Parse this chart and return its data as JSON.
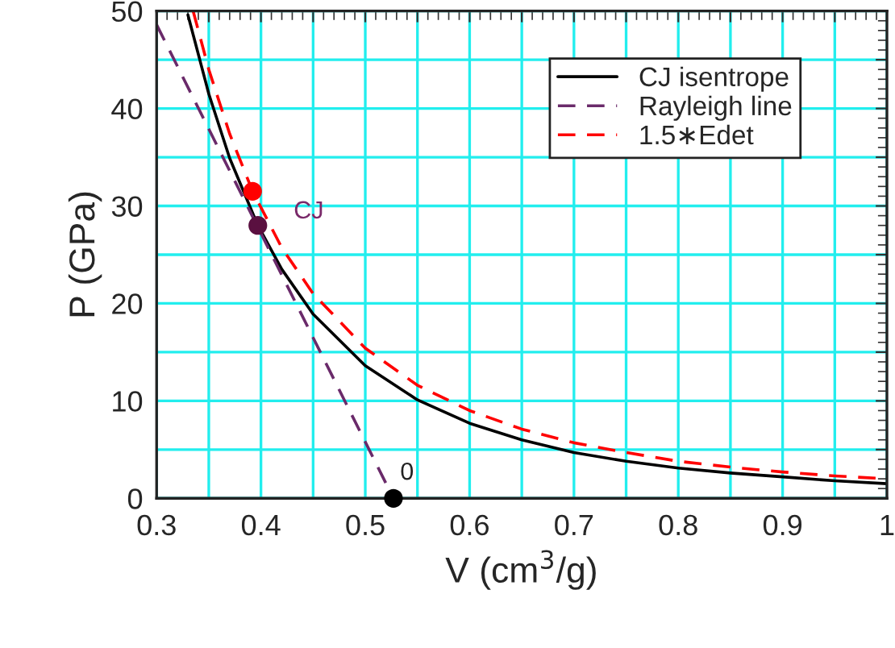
{
  "chart_data": {
    "type": "line",
    "xlabel": "V (cm$^{3}$/g)",
    "ylabel": "P (GPa)",
    "xlim": [
      0.3,
      1
    ],
    "ylim": [
      0,
      50
    ],
    "xticks": [
      0.3,
      {
        "value": 0.35,
        "label": null
      },
      0.4,
      {
        "value": 0.45,
        "label": null
      },
      0.5,
      {
        "value": 0.55,
        "label": null
      },
      0.6,
      {
        "value": 0.65,
        "label": null
      },
      0.7,
      {
        "value": 0.75,
        "label": null
      },
      0.8,
      {
        "value": 0.85,
        "label": null
      },
      0.9,
      {
        "value": 0.95,
        "label": null
      },
      1
    ],
    "yticks": [
      0,
      {
        "value": 5,
        "label": null
      },
      10,
      {
        "value": 15,
        "label": null
      },
      20,
      {
        "value": 25,
        "label": null
      },
      30,
      {
        "value": 35,
        "label": null
      },
      40,
      {
        "value": 45,
        "label": null
      },
      50
    ],
    "grid": true,
    "legend": "top right",
    "marker": "none",
    "series": [
      {
        "name": "CJ isentrope",
        "color": "#000000",
        "line_style": "solid",
        "x": [
          0.33,
          0.35,
          0.37,
          0.397,
          0.42,
          0.45,
          0.5,
          0.55,
          0.6,
          0.65,
          0.7,
          0.75,
          0.8,
          0.85,
          0.9,
          0.95,
          1.0
        ],
        "values": [
          49.6,
          41.5,
          34.9,
          28,
          23.5,
          18.9,
          13.6,
          10.1,
          7.7,
          6.0,
          4.7,
          3.8,
          3.1,
          2.6,
          2.2,
          1.8,
          1.5
        ]
      },
      {
        "name": "Rayleigh line",
        "color": "#6a2a6a",
        "line_style": "dashed",
        "x": [
          0.3,
          0.527
        ],
        "values": [
          48.6,
          0
        ]
      },
      {
        "name": "1.5∗Edet",
        "color": "#ff0000",
        "line_style": "dashed",
        "x": [
          0.335,
          0.35,
          0.37,
          0.392,
          0.42,
          0.45,
          0.5,
          0.55,
          0.6,
          0.65,
          0.7,
          0.75,
          0.8,
          0.85,
          0.9,
          0.95,
          1.0
        ],
        "values": [
          50.0,
          44.0,
          37.4,
          31.5,
          25.7,
          21.0,
          15.4,
          11.6,
          9.0,
          7.1,
          5.7,
          4.7,
          3.8,
          3.2,
          2.7,
          2.3,
          2.0
        ]
      },
      {
        "type": "scatter",
        "marker": "circle",
        "color": "#ff0000",
        "x": [
          0.392
        ],
        "values": [
          31.5
        ]
      },
      {
        "type": "scatter",
        "marker": "circle",
        "color": "#5a1040",
        "x": [
          0.397
        ],
        "values": [
          28
        ]
      },
      {
        "type": "scatter",
        "marker": "circle",
        "color": "#000000",
        "x": [
          0.527
        ],
        "values": [
          0
        ]
      }
    ],
    "annotations": [
      {
        "text": "CJ",
        "x": 0.397,
        "y": 28
      },
      {
        "text": "0",
        "x": 0.527,
        "y": 0
      }
    ]
  }
}
